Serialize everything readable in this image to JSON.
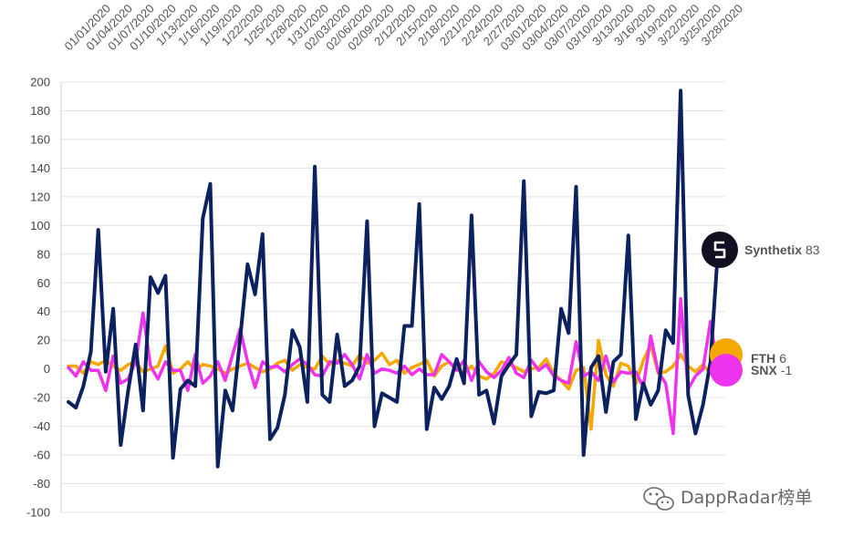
{
  "chart_data": {
    "type": "line",
    "ylim": [
      -100,
      200
    ],
    "yticks": [
      -100,
      -80,
      -60,
      -40,
      -20,
      0,
      20,
      40,
      60,
      80,
      100,
      120,
      140,
      160,
      180,
      200
    ],
    "xticks": [
      "01/01/2020",
      "01/04/2020",
      "01/07/2020",
      "01/10/2020",
      "1/13/2020",
      "1/16/2020",
      "1/19/2020",
      "1/22/2020",
      "1/25/2020",
      "1/28/2020",
      "1/31/2020",
      "02/03/2020",
      "02/06/2020",
      "02/09/2020",
      "2/12/2020",
      "2/15/2020",
      "2/18/2020",
      "2/21/2020",
      "2/24/2020",
      "2/27/2020",
      "03/01/2020",
      "03/04/2020",
      "03/07/2020",
      "03/10/2020",
      "3/13/2020",
      "3/16/2020",
      "3/19/2020",
      "3/22/2020",
      "3/25/2020",
      "3/28/2020"
    ],
    "grid": true,
    "series": [
      {
        "name": "Synthetix",
        "end_value": "83",
        "color": "#0b2160",
        "values": [
          -23,
          -27,
          -12,
          12,
          97,
          -2,
          42,
          -53,
          -15,
          17,
          -29,
          64,
          53,
          65,
          -62,
          -14,
          -8,
          -12,
          105,
          129,
          -68,
          -15,
          -29,
          21,
          73,
          52,
          94,
          -49,
          -41,
          -18,
          27,
          15,
          -23,
          141,
          -18,
          -23,
          24,
          -12,
          -8,
          2,
          103,
          -40,
          -17,
          -20,
          -23,
          30,
          30,
          115,
          -42,
          -13,
          -21,
          -12,
          7,
          -10,
          107,
          -18,
          -15,
          -38,
          -5,
          3,
          10,
          131,
          -33,
          -16,
          -17,
          -15,
          42,
          25,
          127,
          -60,
          1,
          9,
          -30,
          5,
          10,
          93,
          -35,
          -10,
          -25,
          -15,
          27,
          18,
          194,
          -18,
          -45,
          -25,
          5,
          83
        ],
        "end_dot": {
          "fill": "#111122",
          "icon": "synthetix-logo"
        }
      },
      {
        "name": "FTH",
        "end_value": "6",
        "color": "#f5a800",
        "values": [
          2,
          2,
          -3,
          5,
          3,
          6,
          2,
          -1,
          3,
          5,
          -2,
          0,
          2,
          16,
          -3,
          0,
          5,
          -1,
          3,
          2,
          0,
          -3,
          0,
          2,
          4,
          1,
          -2,
          0,
          4,
          6,
          -1,
          3,
          1,
          0,
          9,
          3,
          6,
          4,
          2,
          10,
          4,
          6,
          11,
          3,
          6,
          -3,
          1,
          3,
          6,
          -5,
          2,
          5,
          0,
          -3,
          2,
          -5,
          -7,
          -3,
          5,
          3,
          1,
          -2,
          0,
          1,
          7,
          -3,
          -8,
          -14,
          -1,
          1,
          -42,
          20,
          -4,
          -12,
          4,
          2,
          -10,
          6,
          17,
          -3,
          -2,
          2,
          10,
          2,
          -2,
          3,
          -3,
          6
        ],
        "end_dot": {
          "fill": "#f5a800"
        }
      },
      {
        "name": "SNX",
        "end_value": "-1",
        "color": "#ee33ee",
        "values": [
          1,
          -5,
          5,
          -1,
          -1,
          -15,
          9,
          -10,
          -7,
          5,
          39,
          2,
          -7,
          5,
          -1,
          -1,
          -15,
          10,
          -10,
          -5,
          5,
          -8,
          10,
          28,
          5,
          -13,
          5,
          1,
          2,
          -2,
          3,
          7,
          3,
          -4,
          -5,
          5,
          4,
          10,
          3,
          -7,
          10,
          -3,
          0,
          -1,
          -3,
          2,
          -4,
          0,
          -4,
          -4,
          10,
          5,
          -1,
          6,
          -8,
          5,
          -2,
          -6,
          -1,
          8,
          -3,
          -6,
          6,
          -1,
          3,
          -5,
          -8,
          -10,
          19,
          -5,
          -2,
          -8,
          9,
          -9,
          -2,
          -3,
          -2,
          -13,
          23,
          -2,
          -10,
          -45,
          49,
          -14,
          -5,
          0,
          33,
          -1
        ],
        "end_dot": {
          "fill": "#ee33ee"
        }
      }
    ]
  },
  "watermark": {
    "text": "DappRadar榜单",
    "icon": "wechat-icon"
  }
}
